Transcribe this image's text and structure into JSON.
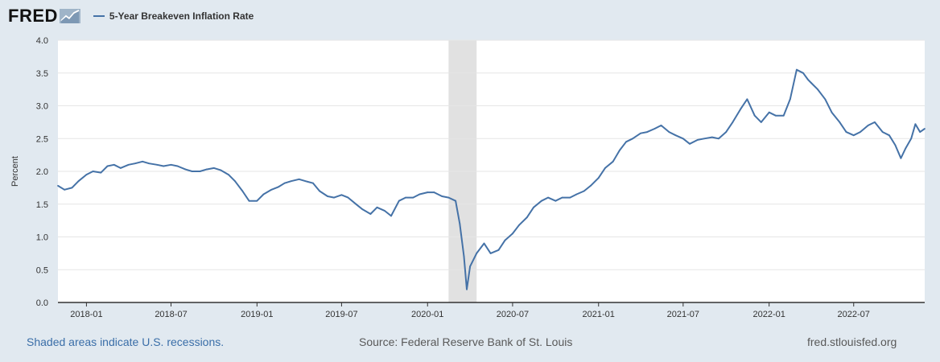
{
  "header": {
    "logo_text": "FRED",
    "legend_label": "5-Year Breakeven Inflation Rate"
  },
  "footer": {
    "recession_note": "Shaded areas indicate U.S. recessions.",
    "source": "Source: Federal Reserve Bank of St. Louis",
    "site": "fred.stlouisfed.org"
  },
  "colors": {
    "series": "#4572a7",
    "recession": "#e1e1e1",
    "background": "#e1e9f0",
    "plot": "#ffffff",
    "link": "#3a6ea8"
  },
  "chart_data": {
    "type": "line",
    "ylabel": "Percent",
    "ylim": [
      0,
      4
    ],
    "yticks": [
      "0.0",
      "0.5",
      "1.0",
      "1.5",
      "2.0",
      "2.5",
      "3.0",
      "3.5",
      "4.0"
    ],
    "xlim": [
      "2017-11-01",
      "2022-11-30"
    ],
    "xticks": [
      "2018-01",
      "2018-07",
      "2019-01",
      "2019-07",
      "2020-01",
      "2020-07",
      "2021-01",
      "2021-07",
      "2022-01",
      "2022-07"
    ],
    "grid": true,
    "legend": "top-left",
    "recessions": [
      {
        "start": "2020-02-15",
        "end": "2020-04-15"
      }
    ],
    "series": [
      {
        "name": "5-Year Breakeven Inflation Rate",
        "x": [
          "2017-11-01",
          "2017-11-15",
          "2017-12-01",
          "2017-12-15",
          "2018-01-01",
          "2018-01-15",
          "2018-02-01",
          "2018-02-15",
          "2018-03-01",
          "2018-03-15",
          "2018-04-01",
          "2018-04-15",
          "2018-05-01",
          "2018-05-15",
          "2018-06-01",
          "2018-06-15",
          "2018-07-01",
          "2018-07-15",
          "2018-08-01",
          "2018-08-15",
          "2018-09-01",
          "2018-09-15",
          "2018-10-01",
          "2018-10-15",
          "2018-11-01",
          "2018-11-15",
          "2018-12-01",
          "2018-12-15",
          "2019-01-01",
          "2019-01-15",
          "2019-02-01",
          "2019-02-15",
          "2019-03-01",
          "2019-03-15",
          "2019-04-01",
          "2019-04-15",
          "2019-05-01",
          "2019-05-15",
          "2019-06-01",
          "2019-06-15",
          "2019-07-01",
          "2019-07-15",
          "2019-08-01",
          "2019-08-15",
          "2019-09-01",
          "2019-09-15",
          "2019-10-01",
          "2019-10-15",
          "2019-11-01",
          "2019-11-15",
          "2019-12-01",
          "2019-12-15",
          "2020-01-01",
          "2020-01-15",
          "2020-02-01",
          "2020-02-15",
          "2020-03-01",
          "2020-03-10",
          "2020-03-19",
          "2020-03-25",
          "2020-04-01",
          "2020-04-15",
          "2020-05-01",
          "2020-05-15",
          "2020-06-01",
          "2020-06-15",
          "2020-07-01",
          "2020-07-15",
          "2020-08-01",
          "2020-08-15",
          "2020-09-01",
          "2020-09-15",
          "2020-10-01",
          "2020-10-15",
          "2020-11-01",
          "2020-11-15",
          "2020-12-01",
          "2020-12-15",
          "2021-01-01",
          "2021-01-15",
          "2021-02-01",
          "2021-02-15",
          "2021-03-01",
          "2021-03-15",
          "2021-04-01",
          "2021-04-15",
          "2021-05-01",
          "2021-05-15",
          "2021-06-01",
          "2021-06-15",
          "2021-07-01",
          "2021-07-15",
          "2021-08-01",
          "2021-08-15",
          "2021-09-01",
          "2021-09-15",
          "2021-10-01",
          "2021-10-15",
          "2021-11-01",
          "2021-11-15",
          "2021-12-01",
          "2021-12-15",
          "2022-01-01",
          "2022-01-15",
          "2022-02-01",
          "2022-02-15",
          "2022-03-01",
          "2022-03-15",
          "2022-03-25",
          "2022-04-01",
          "2022-04-15",
          "2022-05-01",
          "2022-05-15",
          "2022-06-01",
          "2022-06-15",
          "2022-07-01",
          "2022-07-15",
          "2022-08-01",
          "2022-08-15",
          "2022-09-01",
          "2022-09-15",
          "2022-09-28",
          "2022-10-10",
          "2022-10-20",
          "2022-11-01",
          "2022-11-10",
          "2022-11-20",
          "2022-11-30"
        ],
        "y": [
          1.78,
          1.72,
          1.75,
          1.85,
          1.95,
          2.0,
          1.98,
          2.08,
          2.1,
          2.05,
          2.1,
          2.12,
          2.15,
          2.12,
          2.1,
          2.08,
          2.1,
          2.08,
          2.03,
          2.0,
          2.0,
          2.03,
          2.05,
          2.02,
          1.95,
          1.85,
          1.7,
          1.55,
          1.55,
          1.65,
          1.72,
          1.76,
          1.82,
          1.85,
          1.88,
          1.85,
          1.82,
          1.7,
          1.62,
          1.6,
          1.64,
          1.6,
          1.5,
          1.42,
          1.35,
          1.45,
          1.4,
          1.32,
          1.55,
          1.6,
          1.6,
          1.65,
          1.68,
          1.68,
          1.62,
          1.6,
          1.55,
          1.2,
          0.7,
          0.2,
          0.55,
          0.75,
          0.9,
          0.75,
          0.8,
          0.95,
          1.05,
          1.18,
          1.3,
          1.45,
          1.55,
          1.6,
          1.55,
          1.6,
          1.6,
          1.65,
          1.7,
          1.78,
          1.9,
          2.05,
          2.15,
          2.32,
          2.45,
          2.5,
          2.58,
          2.6,
          2.65,
          2.7,
          2.6,
          2.55,
          2.5,
          2.42,
          2.48,
          2.5,
          2.52,
          2.5,
          2.6,
          2.75,
          2.95,
          3.1,
          2.85,
          2.75,
          2.9,
          2.85,
          2.85,
          3.1,
          3.55,
          3.5,
          3.4,
          3.35,
          3.25,
          3.1,
          2.9,
          2.75,
          2.6,
          2.55,
          2.6,
          2.7,
          2.75,
          2.6,
          2.55,
          2.4,
          2.2,
          2.35,
          2.5,
          2.72,
          2.6,
          2.65
        ]
      }
    ]
  }
}
